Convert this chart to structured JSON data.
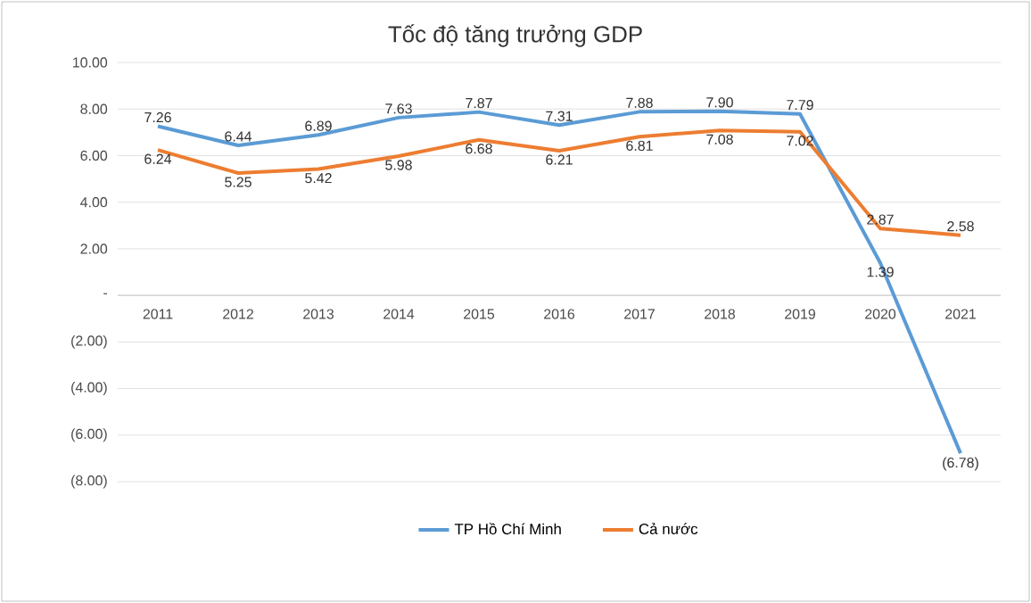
{
  "chart_data": {
    "type": "line",
    "title": "Tốc độ tăng trưởng GDP",
    "categories": [
      "2011",
      "2012",
      "2013",
      "2014",
      "2015",
      "2016",
      "2017",
      "2018",
      "2019",
      "2020",
      "2021"
    ],
    "series": [
      {
        "name": "TP Hồ Chí Minh",
        "color": "#5b9bd5",
        "values": [
          7.26,
          6.44,
          6.89,
          7.63,
          7.87,
          7.31,
          7.88,
          7.9,
          7.79,
          1.39,
          -6.78
        ],
        "value_labels": [
          "7.26",
          "6.44",
          "6.89",
          "7.63",
          "7.87",
          "7.31",
          "7.88",
          "7.90",
          "7.79",
          "1.39",
          "(6.78)"
        ]
      },
      {
        "name": "Cả nước",
        "color": "#ed7d31",
        "values": [
          6.24,
          5.25,
          5.42,
          5.98,
          6.68,
          6.21,
          6.81,
          7.08,
          7.02,
          2.87,
          2.58
        ],
        "value_labels": [
          "6.24",
          "5.25",
          "5.42",
          "5.98",
          "6.68",
          "6.21",
          "6.81",
          "7.08",
          "7.02",
          "2.87",
          "2.58"
        ]
      }
    ],
    "ylim": [
      -8,
      10
    ],
    "yticks": [
      {
        "value": -8,
        "label": "(8.00)"
      },
      {
        "value": -6,
        "label": "(6.00)"
      },
      {
        "value": -4,
        "label": "(4.00)"
      },
      {
        "value": -2,
        "label": "(2.00)"
      },
      {
        "value": 0,
        "label": "-"
      },
      {
        "value": 2,
        "label": "2.00"
      },
      {
        "value": 4,
        "label": "4.00"
      },
      {
        "value": 6,
        "label": "6.00"
      },
      {
        "value": 8,
        "label": "8.00"
      },
      {
        "value": 10,
        "label": "10.00"
      }
    ],
    "grid": "y",
    "legend": "bottom",
    "marker": "none",
    "line_style": "solid"
  }
}
